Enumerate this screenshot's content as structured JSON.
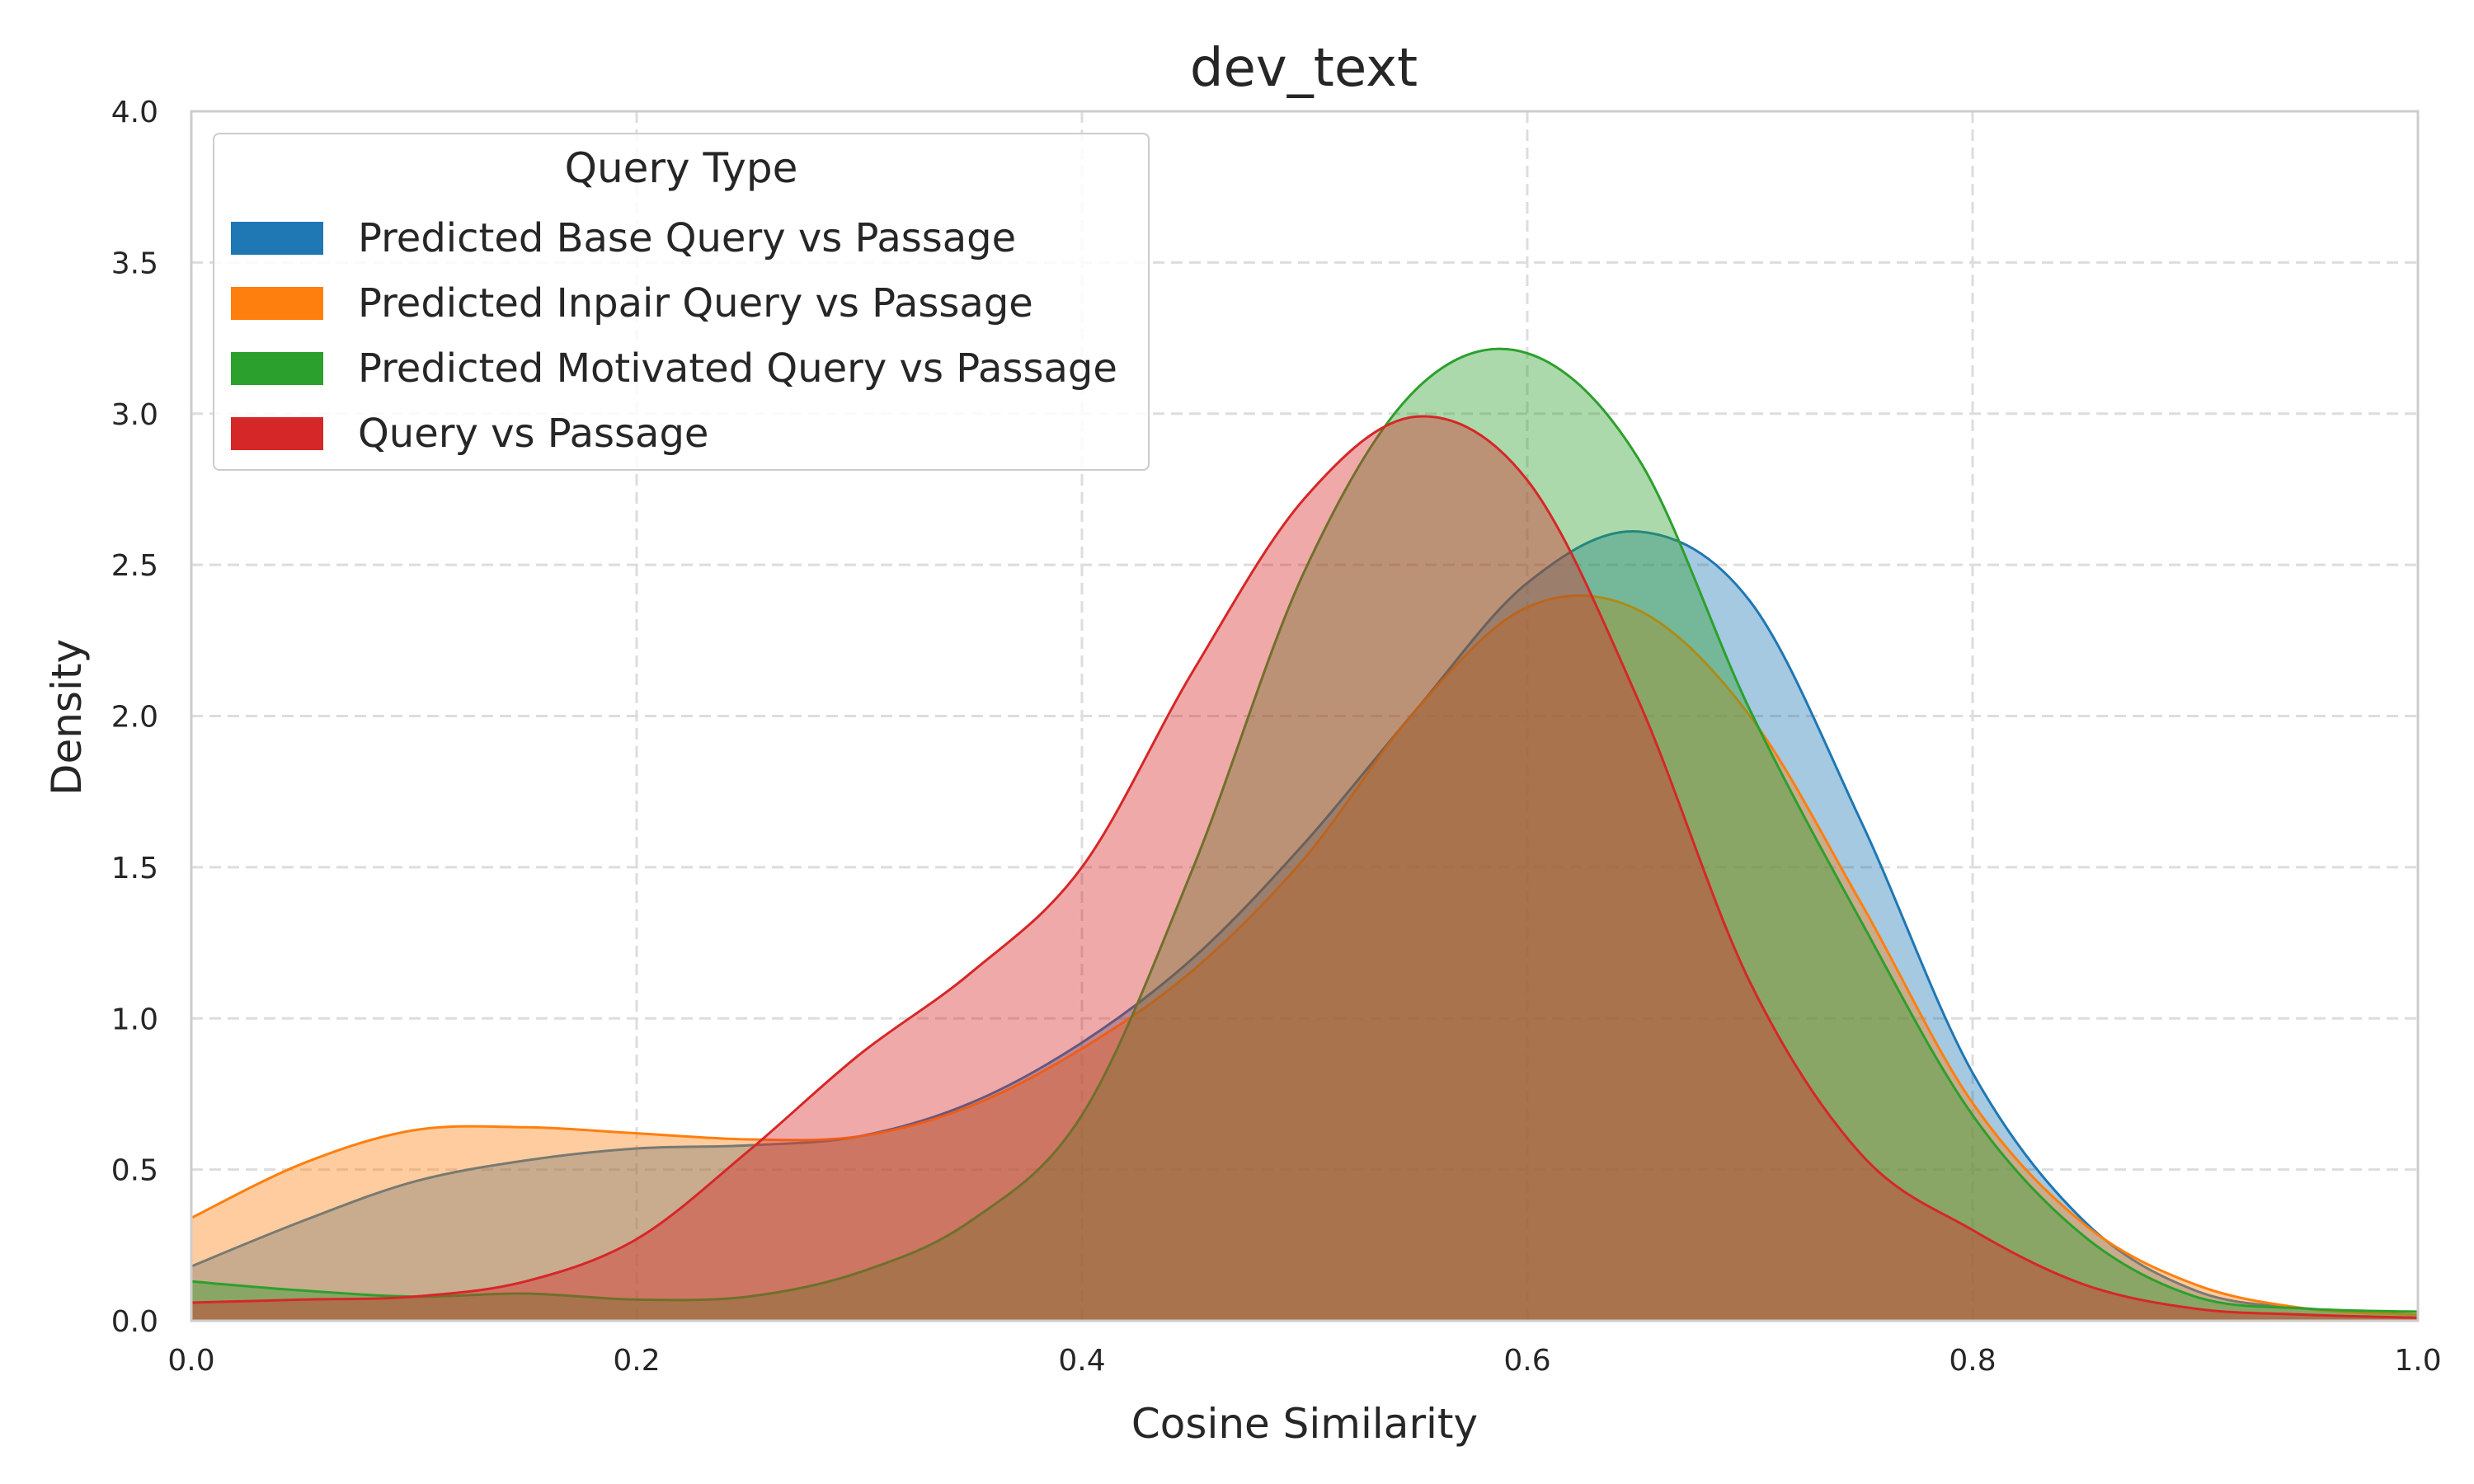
{
  "chart_data": {
    "type": "area",
    "title": "dev_text",
    "xlabel": "Cosine Similarity",
    "ylabel": "Density",
    "xlim": [
      0.0,
      1.0
    ],
    "ylim": [
      0.0,
      4.0
    ],
    "xticks": [
      "0.0",
      "0.2",
      "0.4",
      "0.6",
      "0.8",
      "1.0"
    ],
    "yticks": [
      "0.0",
      "0.5",
      "1.0",
      "1.5",
      "2.0",
      "2.5",
      "3.0",
      "3.5",
      "4.0"
    ],
    "grid": true,
    "legend": {
      "title": "Query Type",
      "placement": "upper-left"
    },
    "x": [
      0.0,
      0.05,
      0.1,
      0.15,
      0.2,
      0.25,
      0.3,
      0.35,
      0.4,
      0.45,
      0.5,
      0.55,
      0.6,
      0.65,
      0.7,
      0.75,
      0.8,
      0.85,
      0.9,
      0.95,
      1.0
    ],
    "series": [
      {
        "name": "Predicted Base Query vs Passage",
        "color": "#1f77b4",
        "values": [
          0.18,
          0.33,
          0.46,
          0.53,
          0.57,
          0.58,
          0.61,
          0.72,
          0.92,
          1.2,
          1.58,
          2.02,
          2.44,
          2.61,
          2.38,
          1.65,
          0.82,
          0.33,
          0.1,
          0.04,
          0.02
        ]
      },
      {
        "name": "Predicted Inpair Query vs Passage",
        "color": "#ff7f0e",
        "values": [
          0.34,
          0.52,
          0.63,
          0.64,
          0.62,
          0.6,
          0.61,
          0.71,
          0.9,
          1.16,
          1.53,
          2.02,
          2.36,
          2.35,
          2.0,
          1.38,
          0.72,
          0.32,
          0.12,
          0.04,
          0.02
        ]
      },
      {
        "name": "Predicted Motivated Query vs Passage",
        "color": "#2ca02c",
        "values": [
          0.13,
          0.1,
          0.08,
          0.09,
          0.07,
          0.08,
          0.16,
          0.33,
          0.68,
          1.5,
          2.48,
          3.08,
          3.2,
          2.85,
          2.02,
          1.32,
          0.68,
          0.28,
          0.08,
          0.04,
          0.03
        ]
      },
      {
        "name": "Query vs Passage",
        "color": "#d62728",
        "values": [
          0.06,
          0.07,
          0.08,
          0.13,
          0.27,
          0.56,
          0.88,
          1.15,
          1.5,
          2.15,
          2.72,
          2.99,
          2.78,
          2.05,
          1.12,
          0.55,
          0.3,
          0.12,
          0.04,
          0.02,
          0.01
        ]
      }
    ]
  }
}
